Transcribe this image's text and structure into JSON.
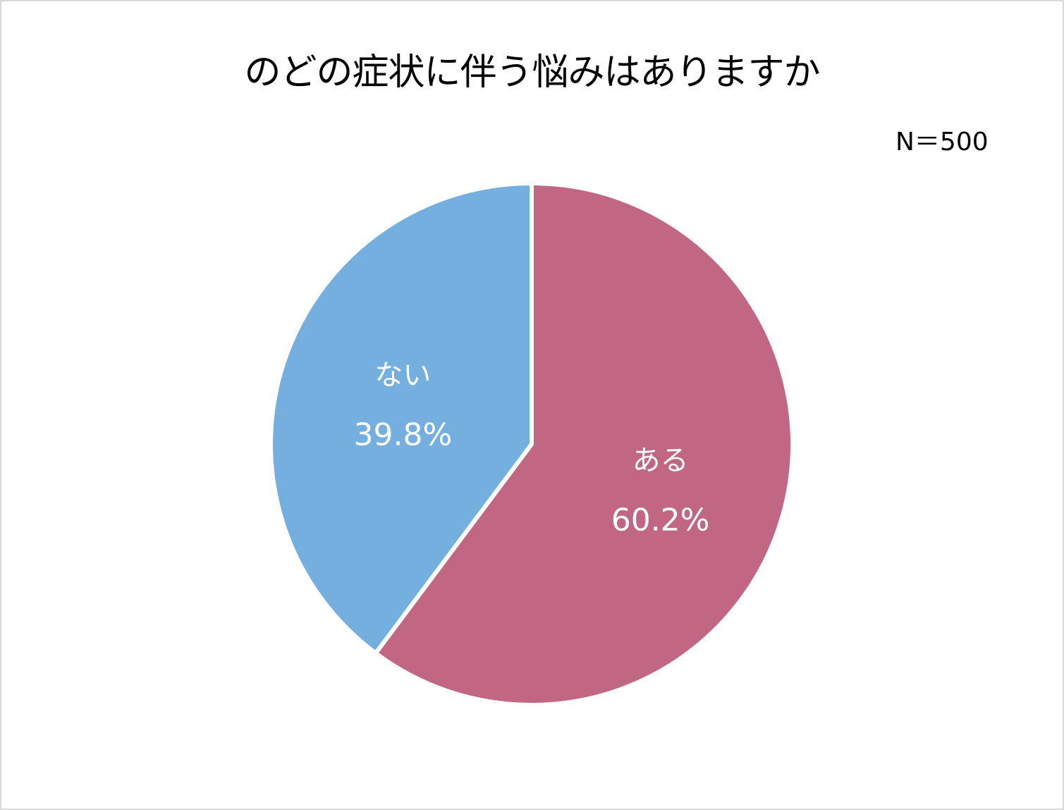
{
  "chart_data": {
    "type": "pie",
    "title": "のどの症状に伴う悩みはありますか",
    "note": "N＝500",
    "slices": [
      {
        "label": "ある",
        "value": 60.2,
        "display": "60.2%",
        "color": "#c26783"
      },
      {
        "label": "ない",
        "value": 39.8,
        "display": "39.8%",
        "color": "#74afdf"
      }
    ],
    "start_angle": "12 o'clock",
    "direction": "clockwise",
    "slice_separator_color": "#ffffff"
  }
}
